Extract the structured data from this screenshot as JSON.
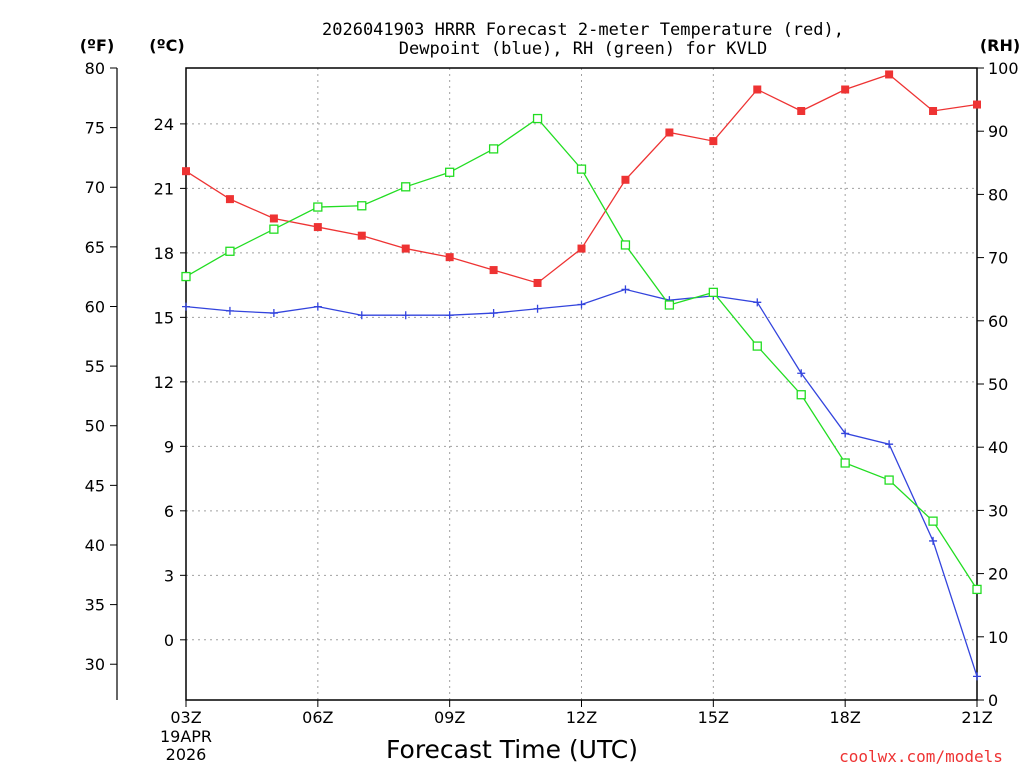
{
  "chart_data": {
    "type": "line",
    "title_line1": "2026041903 HRRR Forecast 2-meter Temperature (red),",
    "title_line2": "Dewpoint (blue), RH (green) for KVLD",
    "xlabel": "Forecast Time (UTC)",
    "credit": "coolwx.com/models",
    "date_label_line1": "19APR",
    "date_label_line2": "2026",
    "units": {
      "fahrenheit": "(ºF)",
      "celsius": "(ºC)",
      "rh": "(RH)"
    },
    "x": [
      "03Z",
      "04Z",
      "05Z",
      "06Z",
      "07Z",
      "08Z",
      "09Z",
      "10Z",
      "11Z",
      "12Z",
      "13Z",
      "14Z",
      "15Z",
      "16Z",
      "17Z",
      "18Z",
      "19Z",
      "20Z",
      "21Z"
    ],
    "x_tick_labels": [
      "03Z",
      "06Z",
      "09Z",
      "12Z",
      "15Z",
      "18Z",
      "21Z"
    ],
    "celsius_axis": {
      "ylim": [
        -2.8,
        26.6
      ],
      "ticks": [
        "0",
        "3",
        "6",
        "9",
        "12",
        "15",
        "18",
        "21",
        "24"
      ]
    },
    "fahrenheit_axis": {
      "ylim": [
        27.0,
        80.0
      ],
      "ticks": [
        "30",
        "35",
        "40",
        "45",
        "50",
        "55",
        "60",
        "65",
        "70",
        "75",
        "80"
      ]
    },
    "rh_axis": {
      "ylim": [
        0,
        100
      ],
      "ticks": [
        "0",
        "10",
        "20",
        "30",
        "40",
        "50",
        "60",
        "70",
        "80",
        "90",
        "100"
      ]
    },
    "series": [
      {
        "name": "Temperature",
        "color": "#ee3333",
        "axis": "celsius",
        "marker": "filled-square",
        "values": [
          21.8,
          20.5,
          19.6,
          19.2,
          18.8,
          18.2,
          17.8,
          17.2,
          16.6,
          18.2,
          21.4,
          23.6,
          23.2,
          25.6,
          24.6,
          25.6,
          26.3,
          24.6,
          24.9
        ]
      },
      {
        "name": "Dewpoint",
        "color": "#3344dd",
        "axis": "celsius",
        "marker": "plus",
        "values": [
          15.5,
          15.3,
          15.2,
          15.5,
          15.1,
          15.1,
          15.1,
          15.2,
          15.4,
          15.6,
          16.3,
          15.8,
          16.0,
          15.7,
          12.4,
          9.6,
          9.1,
          4.6,
          -1.7
        ]
      },
      {
        "name": "RH",
        "color": "#22dd22",
        "axis": "rh",
        "marker": "open-square",
        "values": [
          67,
          71,
          74.5,
          78,
          78.2,
          81.2,
          83.5,
          87.2,
          92,
          84,
          72,
          62.5,
          64.5,
          56,
          48.3,
          37.5,
          34.8,
          28.3,
          17.5
        ]
      }
    ]
  }
}
